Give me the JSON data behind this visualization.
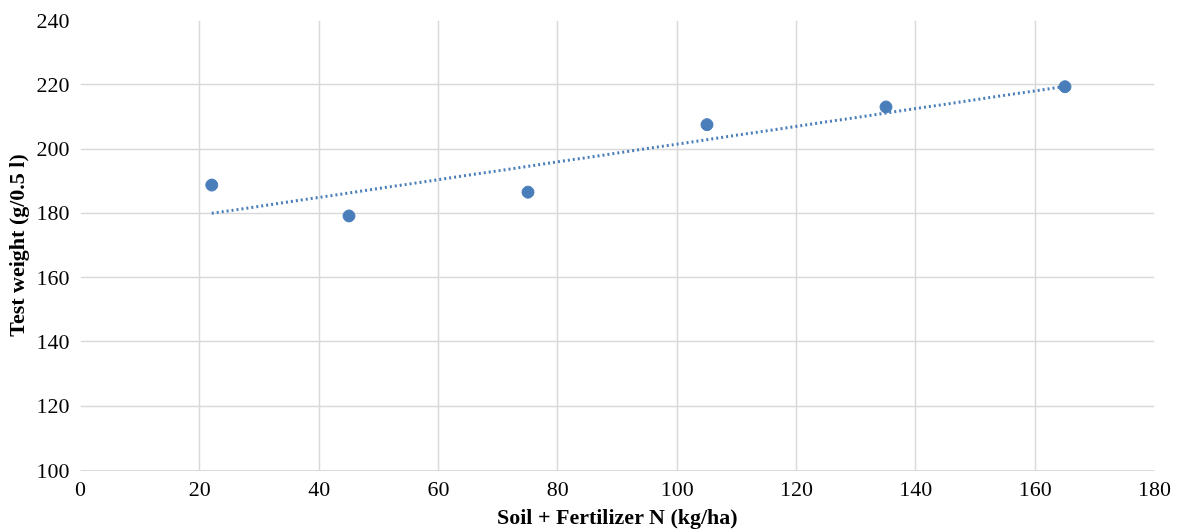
{
  "chart_data": {
    "type": "scatter",
    "xlabel": "Soil + Fertilizer N (kg/ha)",
    "ylabel": "Test weight (g/0.5 l)",
    "xlim": [
      0,
      180
    ],
    "xticks": [
      0,
      20,
      40,
      60,
      80,
      100,
      120,
      140,
      160,
      180
    ],
    "ylim": [
      100,
      240
    ],
    "yticks": [
      100,
      120,
      140,
      160,
      180,
      200,
      220,
      240
    ],
    "grid": true,
    "marker": "circle",
    "series": [
      {
        "color": "#4a7ebb",
        "x": [
          22,
          45,
          75,
          105,
          135,
          165
        ],
        "values": [
          188.8,
          179.2,
          186.6,
          207.6,
          213.1,
          219.4
        ]
      },
      {
        "type": "line",
        "color": "#4a7ebb",
        "line_style": "dotted",
        "marker": "none",
        "x": [
          22,
          165
        ],
        "values": [
          180.0,
          219.5
        ]
      }
    ]
  }
}
